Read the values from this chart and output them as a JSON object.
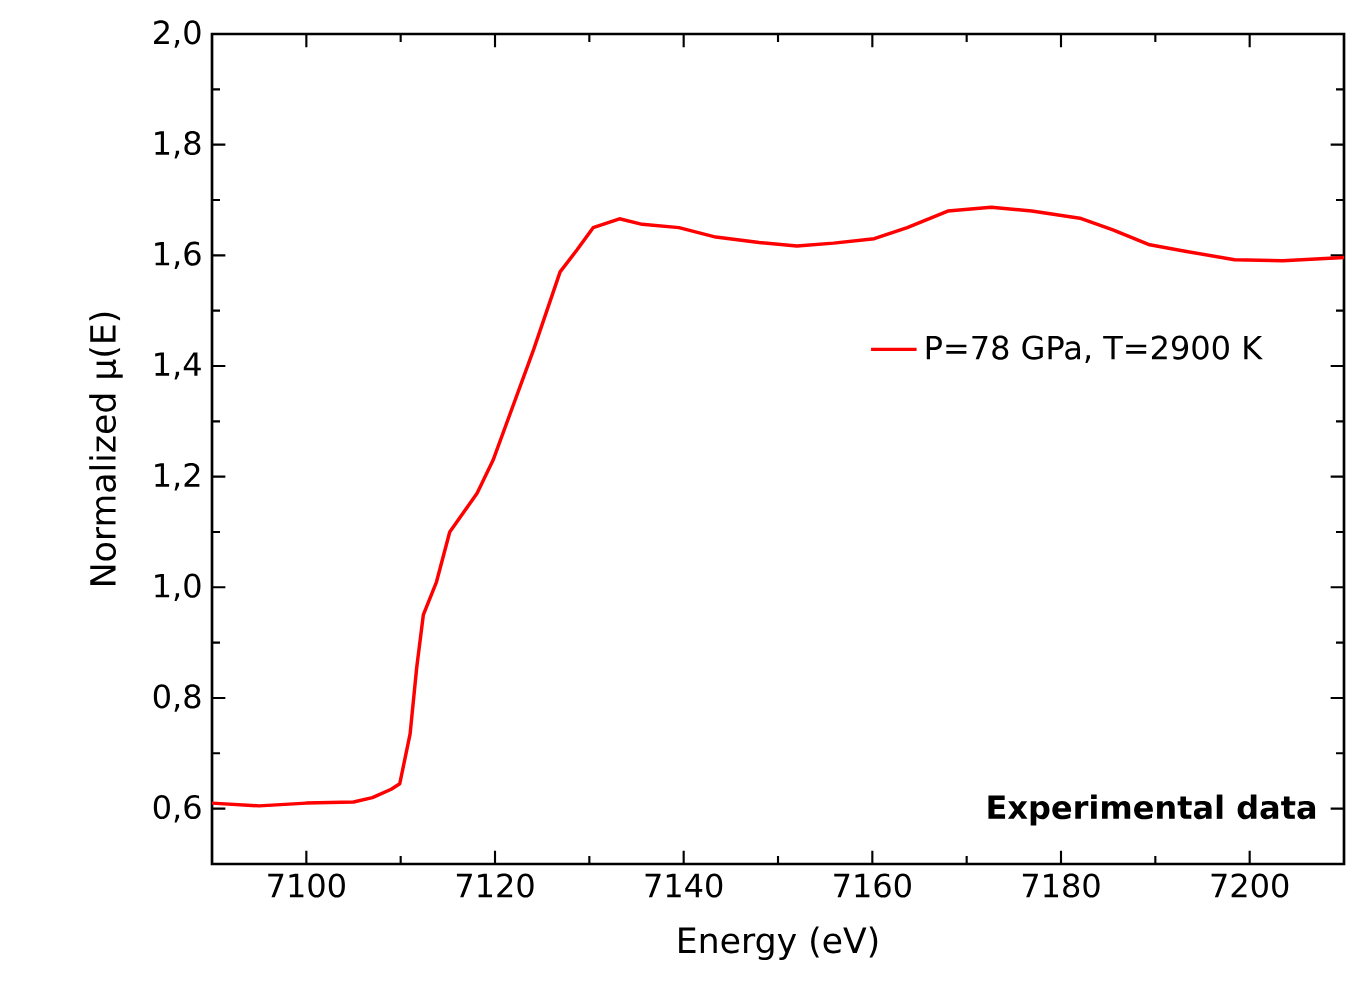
{
  "chart_data": {
    "type": "line",
    "xlabel": "Energy (eV)",
    "ylabel": "Normalized μ(E)",
    "annotations": [
      "Experimental data"
    ],
    "xlim": [
      7090,
      7210
    ],
    "xticks": [
      7100,
      7120,
      7140,
      7160,
      7180,
      7200
    ],
    "ylim": [
      0.5,
      2.0
    ],
    "yticks": [
      {
        "value": 0.6,
        "label": "0,6"
      },
      {
        "value": 0.8,
        "label": "0,8"
      },
      {
        "value": 1.0,
        "label": "1,0"
      },
      {
        "value": 1.2,
        "label": "1,2"
      },
      {
        "value": 1.4,
        "label": "1,4"
      },
      {
        "value": 1.6,
        "label": "1,6"
      },
      {
        "value": 1.8,
        "label": "1,8"
      },
      {
        "value": 2.0,
        "label": "2,0"
      }
    ],
    "legend": "right",
    "series": [
      {
        "name": "P=78 GPa, T=2900 K",
        "color": "#ff0000",
        "x": [
          7090,
          7095,
          7100,
          7105,
          7107,
          7109,
          7109.9,
          7111.0,
          7111.7,
          7112.4,
          7113.8,
          7115.2,
          7118.1,
          7119.8,
          7124.1,
          7126.9,
          7128.7,
          7130.4,
          7133.2,
          7135.6,
          7139.5,
          7143.4,
          7148.0,
          7152.0,
          7155.9,
          7160.2,
          7163.7,
          7168.0,
          7172.6,
          7176.9,
          7182.0,
          7185.5,
          7189.4,
          7193.3,
          7198.4,
          7203.5,
          7210
        ],
        "values": [
          0.61,
          0.605,
          0.61,
          0.612,
          0.62,
          0.635,
          0.645,
          0.735,
          0.855,
          0.95,
          1.01,
          1.1,
          1.17,
          1.23,
          1.43,
          1.57,
          1.61,
          1.65,
          1.666,
          1.656,
          1.65,
          1.633,
          1.623,
          1.617,
          1.622,
          1.63,
          1.65,
          1.68,
          1.687,
          1.68,
          1.667,
          1.646,
          1.619,
          1.607,
          1.592,
          1.59,
          1.596
        ]
      }
    ]
  }
}
